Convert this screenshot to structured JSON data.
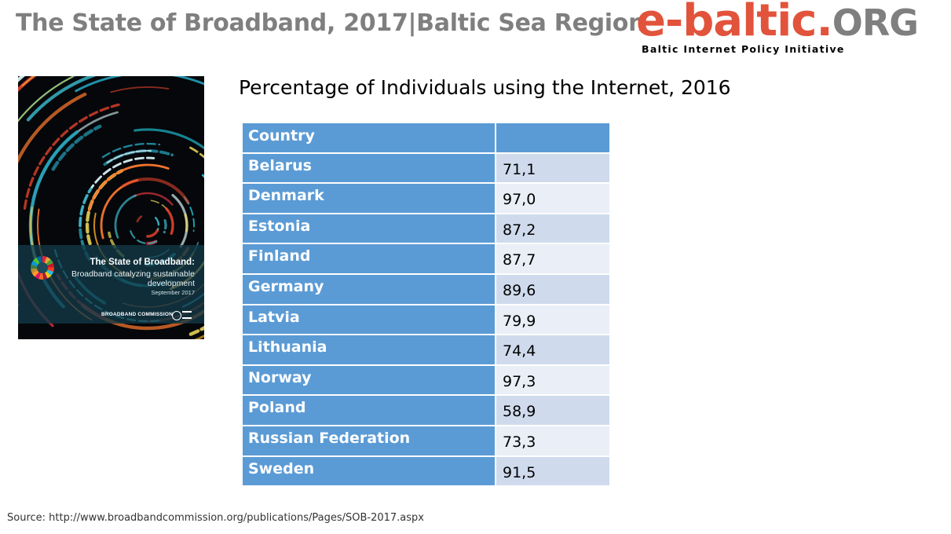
{
  "header": {
    "title": "The State of Broadband, 2017|Baltic Sea Region"
  },
  "logo": {
    "name": "e-baltic.",
    "tld": "ORG",
    "tagline": "Baltic Internet Policy Initiative"
  },
  "cover": {
    "title": "The State of Broadband:",
    "subtitle": "Broadband catalyzing sustainable development",
    "date": "September 2017",
    "organization": "BROADBAND COMMISSION"
  },
  "table": {
    "title": "Percentage of Individuals using the Internet, 2016",
    "headers": [
      "Country",
      ""
    ],
    "rows": [
      {
        "country": "Belarus",
        "value": "71,1"
      },
      {
        "country": "Denmark",
        "value": "97,0"
      },
      {
        "country": "Estonia",
        "value": "87,2"
      },
      {
        "country": "Finland",
        "value": "87,7"
      },
      {
        "country": "Germany",
        "value": "89,6"
      },
      {
        "country": "Latvia",
        "value": "79,9"
      },
      {
        "country": "Lithuania",
        "value": "74,4"
      },
      {
        "country": "Norway",
        "value": "97,3"
      },
      {
        "country": "Poland",
        "value": "58,9"
      },
      {
        "country": "Russian Federation",
        "value": "73,3"
      },
      {
        "country": "Sweden",
        "value": "91,5"
      }
    ]
  },
  "source": "Source: http://www.broadbandcommission.org/publications/Pages/SOB-2017.aspx",
  "colors": {
    "header_cell": "#5b9bd5",
    "row_band_light": "#e9eef7",
    "row_band_dark": "#cfdbed",
    "logo_red": "#e2533b",
    "logo_gray": "#7f7f7f"
  }
}
